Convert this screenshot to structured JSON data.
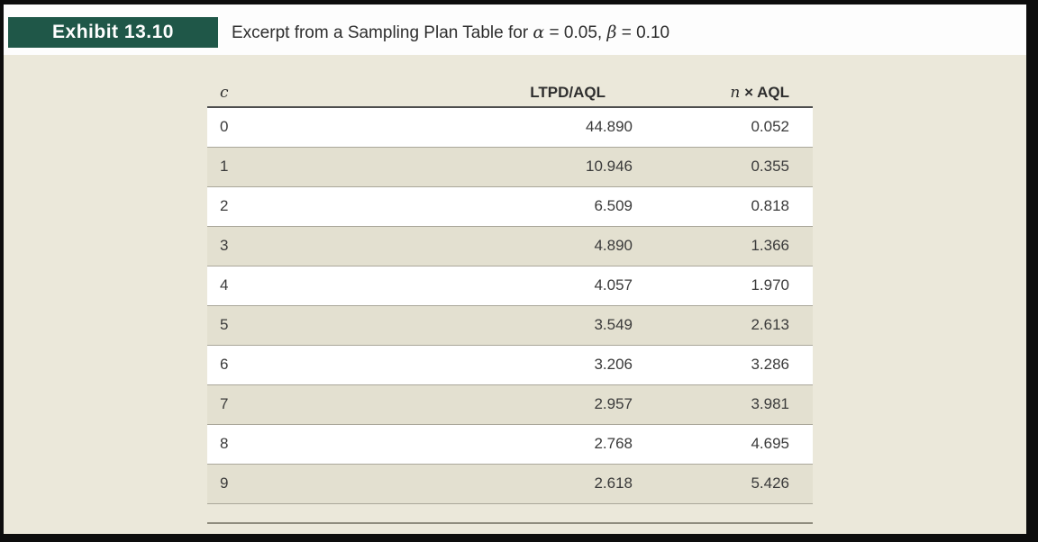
{
  "exhibit": {
    "label": "Exhibit 13.10",
    "title_prefix": "Excerpt from a Sampling Plan Table for ",
    "alpha_symbol": "α",
    "alpha_eq": " = 0.05, ",
    "beta_symbol": "β",
    "beta_eq": " = 0.10"
  },
  "colors": {
    "exhibit_box": "#1f5748",
    "panel_bg": "#ebe8da",
    "row_shaded": "#e3e0d0",
    "row_white": "#ffffff",
    "rule": "#aaa79a"
  },
  "table": {
    "headers": {
      "c": "c",
      "ltpd_aql": "LTPD/AQL",
      "n_symbol": "n",
      "n_aql_rest": " × AQL"
    },
    "rows": [
      {
        "c": "0",
        "ltpd_aql": "44.890",
        "n_aql": "0.052"
      },
      {
        "c": "1",
        "ltpd_aql": "10.946",
        "n_aql": "0.355"
      },
      {
        "c": "2",
        "ltpd_aql": "6.509",
        "n_aql": "0.818"
      },
      {
        "c": "3",
        "ltpd_aql": "4.890",
        "n_aql": "1.366"
      },
      {
        "c": "4",
        "ltpd_aql": "4.057",
        "n_aql": "1.970"
      },
      {
        "c": "5",
        "ltpd_aql": "3.549",
        "n_aql": "2.613"
      },
      {
        "c": "6",
        "ltpd_aql": "3.206",
        "n_aql": "3.286"
      },
      {
        "c": "7",
        "ltpd_aql": "2.957",
        "n_aql": "3.981"
      },
      {
        "c": "8",
        "ltpd_aql": "2.768",
        "n_aql": "4.695"
      },
      {
        "c": "9",
        "ltpd_aql": "2.618",
        "n_aql": "5.426"
      }
    ]
  },
  "chart_data": {
    "type": "table",
    "title": "Excerpt from a Sampling Plan Table for α = 0.05, β = 0.10",
    "columns": [
      "c",
      "LTPD/AQL",
      "n × AQL"
    ],
    "rows": [
      [
        0,
        44.89,
        0.052
      ],
      [
        1,
        10.946,
        0.355
      ],
      [
        2,
        6.509,
        0.818
      ],
      [
        3,
        4.89,
        1.366
      ],
      [
        4,
        4.057,
        1.97
      ],
      [
        5,
        3.549,
        2.613
      ],
      [
        6,
        3.206,
        3.286
      ],
      [
        7,
        2.957,
        3.981
      ],
      [
        8,
        2.768,
        4.695
      ],
      [
        9,
        2.618,
        5.426
      ]
    ]
  }
}
